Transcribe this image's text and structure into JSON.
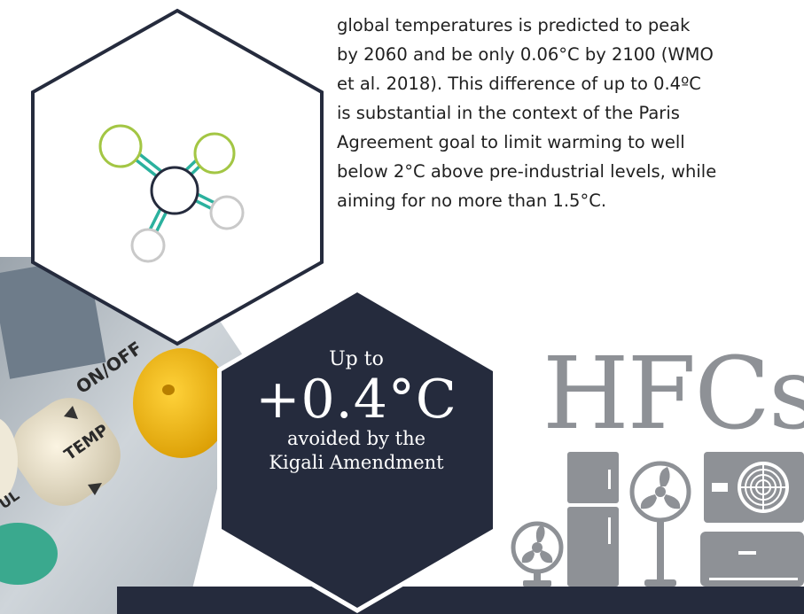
{
  "paragraph": {
    "lines": [
      "global temperatures is predicted to peak",
      "by 2060 and be only 0.06°C by 2100 (WMO",
      "et al. 2018). This difference of up to 0.4ºC",
      "is substantial in the context of the Paris",
      "Agreement goal to limit warming to well",
      "below 2°C above pre-industrial levels, while",
      "aiming for no more than 1.5°C."
    ]
  },
  "stat": {
    "prefix": "Up to",
    "value": "+0.4°C",
    "caption_line1": "avoided by the",
    "caption_line2": "Kigali Amendment"
  },
  "hfcs_label": "HFCs",
  "remote_photo": {
    "button_onoff": "ON/OFF",
    "button_temp": "TEMP",
    "button_partial": "UL"
  },
  "colors": {
    "navy": "#252b3d",
    "molecule_green": "#a3c644",
    "molecule_teal": "#2bb19e",
    "molecule_grey": "#c9c9c9",
    "appliance_grey": "#8e9196"
  },
  "icons": [
    "molecule-icon",
    "desk-fan-icon",
    "refrigerator-icon",
    "standing-fan-icon",
    "outdoor-ac-unit-icon",
    "wall-ac-unit-icon"
  ]
}
